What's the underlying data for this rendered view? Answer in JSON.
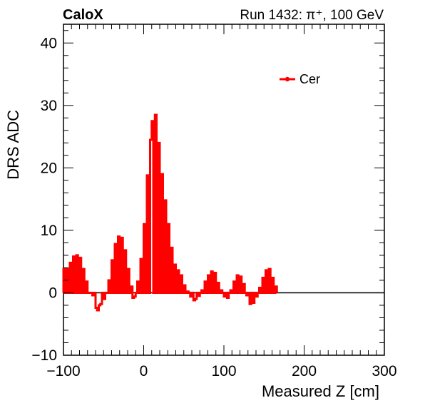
{
  "header": {
    "left": "CaloX",
    "right": "Run 1432:   π⁺, 100 GeV"
  },
  "colors": {
    "series": "#ff0000",
    "axis": "#000000",
    "background": "#ffffff"
  },
  "chart_data": {
    "type": "line",
    "style": "step-histogram",
    "title": "",
    "xlabel": "Measured Z [cm]",
    "ylabel": "DRS ADC",
    "xlim": [
      -100,
      300
    ],
    "ylim": [
      -10,
      43
    ],
    "xticks": [
      -100,
      0,
      100,
      200,
      300
    ],
    "yticks": [
      -10,
      0,
      10,
      20,
      30,
      40
    ],
    "xtick_labels": [
      "−100",
      "0",
      "100",
      "200",
      "300"
    ],
    "ytick_labels": [
      "−10",
      "0",
      "10",
      "20",
      "30",
      "40"
    ],
    "zero_line": true,
    "grid": false,
    "legend": {
      "placement": "top-right",
      "entries": [
        "Cer"
      ]
    },
    "series": [
      {
        "name": "Cer",
        "bins": [
          [
            -100,
            -98,
            3.8
          ],
          [
            -98,
            -96,
            0
          ],
          [
            -96,
            -94,
            3.8
          ],
          [
            -94,
            -92,
            0
          ],
          [
            -92,
            -90,
            4.8
          ],
          [
            -90,
            -88,
            0
          ],
          [
            -88,
            -86,
            5.8
          ],
          [
            -86,
            -84,
            0
          ],
          [
            -84,
            -82,
            6.0
          ],
          [
            -82,
            -80,
            0
          ],
          [
            -80,
            -78,
            5.6
          ],
          [
            -78,
            -76,
            0
          ],
          [
            -76,
            -74,
            3.8
          ],
          [
            -74,
            -72,
            0
          ],
          [
            -72,
            -70,
            1.8
          ],
          [
            -70,
            -68,
            0
          ],
          [
            -68,
            -66,
            0
          ],
          [
            -66,
            -64,
            0
          ],
          [
            -64,
            -62,
            -0.4
          ],
          [
            -62,
            -60,
            0
          ],
          [
            -60,
            -58,
            -2.4
          ],
          [
            -58,
            -56,
            -2.8
          ],
          [
            -56,
            -54,
            -2.0
          ],
          [
            -54,
            -52,
            -1.8
          ],
          [
            -52,
            -50,
            0
          ],
          [
            -50,
            -48,
            -1.0
          ],
          [
            -48,
            -46,
            0
          ],
          [
            -46,
            -44,
            0
          ],
          [
            -44,
            -42,
            2.0
          ],
          [
            -42,
            -40,
            0
          ],
          [
            -40,
            -38,
            5.2
          ],
          [
            -38,
            -36,
            0
          ],
          [
            -36,
            -34,
            7.8
          ],
          [
            -34,
            -32,
            0
          ],
          [
            -32,
            -30,
            9.0
          ],
          [
            -30,
            -28,
            0
          ],
          [
            -28,
            -26,
            8.8
          ],
          [
            -26,
            -24,
            0
          ],
          [
            -24,
            -22,
            6.8
          ],
          [
            -22,
            -20,
            0
          ],
          [
            -20,
            -18,
            3.8
          ],
          [
            -18,
            -16,
            0
          ],
          [
            -16,
            -14,
            1.0
          ],
          [
            -14,
            -12,
            -0.8
          ],
          [
            -12,
            -10,
            -0.6
          ],
          [
            -10,
            -8,
            0
          ],
          [
            -8,
            -6,
            1.8
          ],
          [
            -6,
            -4,
            0
          ],
          [
            -4,
            -2,
            5.4
          ],
          [
            -2,
            0,
            0
          ],
          [
            0,
            2,
            11.0
          ],
          [
            2,
            4,
            0
          ],
          [
            4,
            6,
            18.8
          ],
          [
            6,
            8,
            0
          ],
          [
            8,
            10,
            24.5
          ],
          [
            10,
            12,
            27.5
          ],
          [
            12,
            14,
            0
          ],
          [
            14,
            16,
            28.5
          ],
          [
            16,
            18,
            0
          ],
          [
            18,
            20,
            24.0
          ],
          [
            20,
            22,
            0
          ],
          [
            22,
            24,
            19.0
          ],
          [
            24,
            26,
            0
          ],
          [
            26,
            28,
            14.8
          ],
          [
            28,
            30,
            0
          ],
          [
            30,
            32,
            11.0
          ],
          [
            32,
            34,
            0
          ],
          [
            34,
            36,
            7.2
          ],
          [
            36,
            38,
            0
          ],
          [
            38,
            40,
            4.5
          ],
          [
            40,
            42,
            0
          ],
          [
            42,
            44,
            3.6
          ],
          [
            44,
            46,
            0
          ],
          [
            46,
            48,
            2.8
          ],
          [
            48,
            50,
            0
          ],
          [
            50,
            52,
            1.2
          ],
          [
            52,
            54,
            0
          ],
          [
            54,
            56,
            0.2
          ],
          [
            56,
            58,
            0
          ],
          [
            58,
            60,
            -0.6
          ],
          [
            60,
            62,
            0
          ],
          [
            62,
            64,
            -1.2
          ],
          [
            64,
            66,
            -1.0
          ],
          [
            66,
            68,
            0
          ],
          [
            68,
            70,
            -0.5
          ],
          [
            70,
            72,
            0
          ],
          [
            72,
            74,
            0.4
          ],
          [
            74,
            76,
            0
          ],
          [
            76,
            78,
            1.8
          ],
          [
            78,
            80,
            0
          ],
          [
            80,
            82,
            2.8
          ],
          [
            82,
            84,
            0
          ],
          [
            84,
            86,
            3.4
          ],
          [
            86,
            88,
            0
          ],
          [
            88,
            90,
            3.2
          ],
          [
            90,
            92,
            0
          ],
          [
            92,
            94,
            1.6
          ],
          [
            94,
            96,
            0
          ],
          [
            96,
            98,
            0.4
          ],
          [
            98,
            100,
            0
          ],
          [
            100,
            102,
            -0.6
          ],
          [
            102,
            104,
            0
          ],
          [
            104,
            106,
            -0.8
          ],
          [
            106,
            108,
            0
          ],
          [
            108,
            110,
            0.4
          ],
          [
            110,
            112,
            0
          ],
          [
            112,
            114,
            1.8
          ],
          [
            114,
            116,
            0
          ],
          [
            116,
            118,
            2.8
          ],
          [
            118,
            120,
            0
          ],
          [
            120,
            122,
            2.6
          ],
          [
            122,
            124,
            0
          ],
          [
            124,
            126,
            1.4
          ],
          [
            126,
            128,
            0
          ],
          [
            128,
            130,
            -0.4
          ],
          [
            130,
            132,
            0
          ],
          [
            132,
            134,
            -1.8
          ],
          [
            134,
            136,
            0
          ],
          [
            136,
            138,
            -1.6
          ],
          [
            138,
            140,
            0
          ],
          [
            140,
            142,
            -0.6
          ],
          [
            142,
            144,
            0
          ],
          [
            144,
            146,
            0.8
          ],
          [
            146,
            148,
            0
          ],
          [
            148,
            150,
            2.4
          ],
          [
            150,
            152,
            0
          ],
          [
            152,
            154,
            3.6
          ],
          [
            154,
            156,
            0
          ],
          [
            156,
            158,
            3.8
          ],
          [
            158,
            160,
            0
          ],
          [
            160,
            162,
            2.4
          ],
          [
            162,
            164,
            0
          ],
          [
            164,
            166,
            1.0
          ]
        ]
      }
    ]
  }
}
